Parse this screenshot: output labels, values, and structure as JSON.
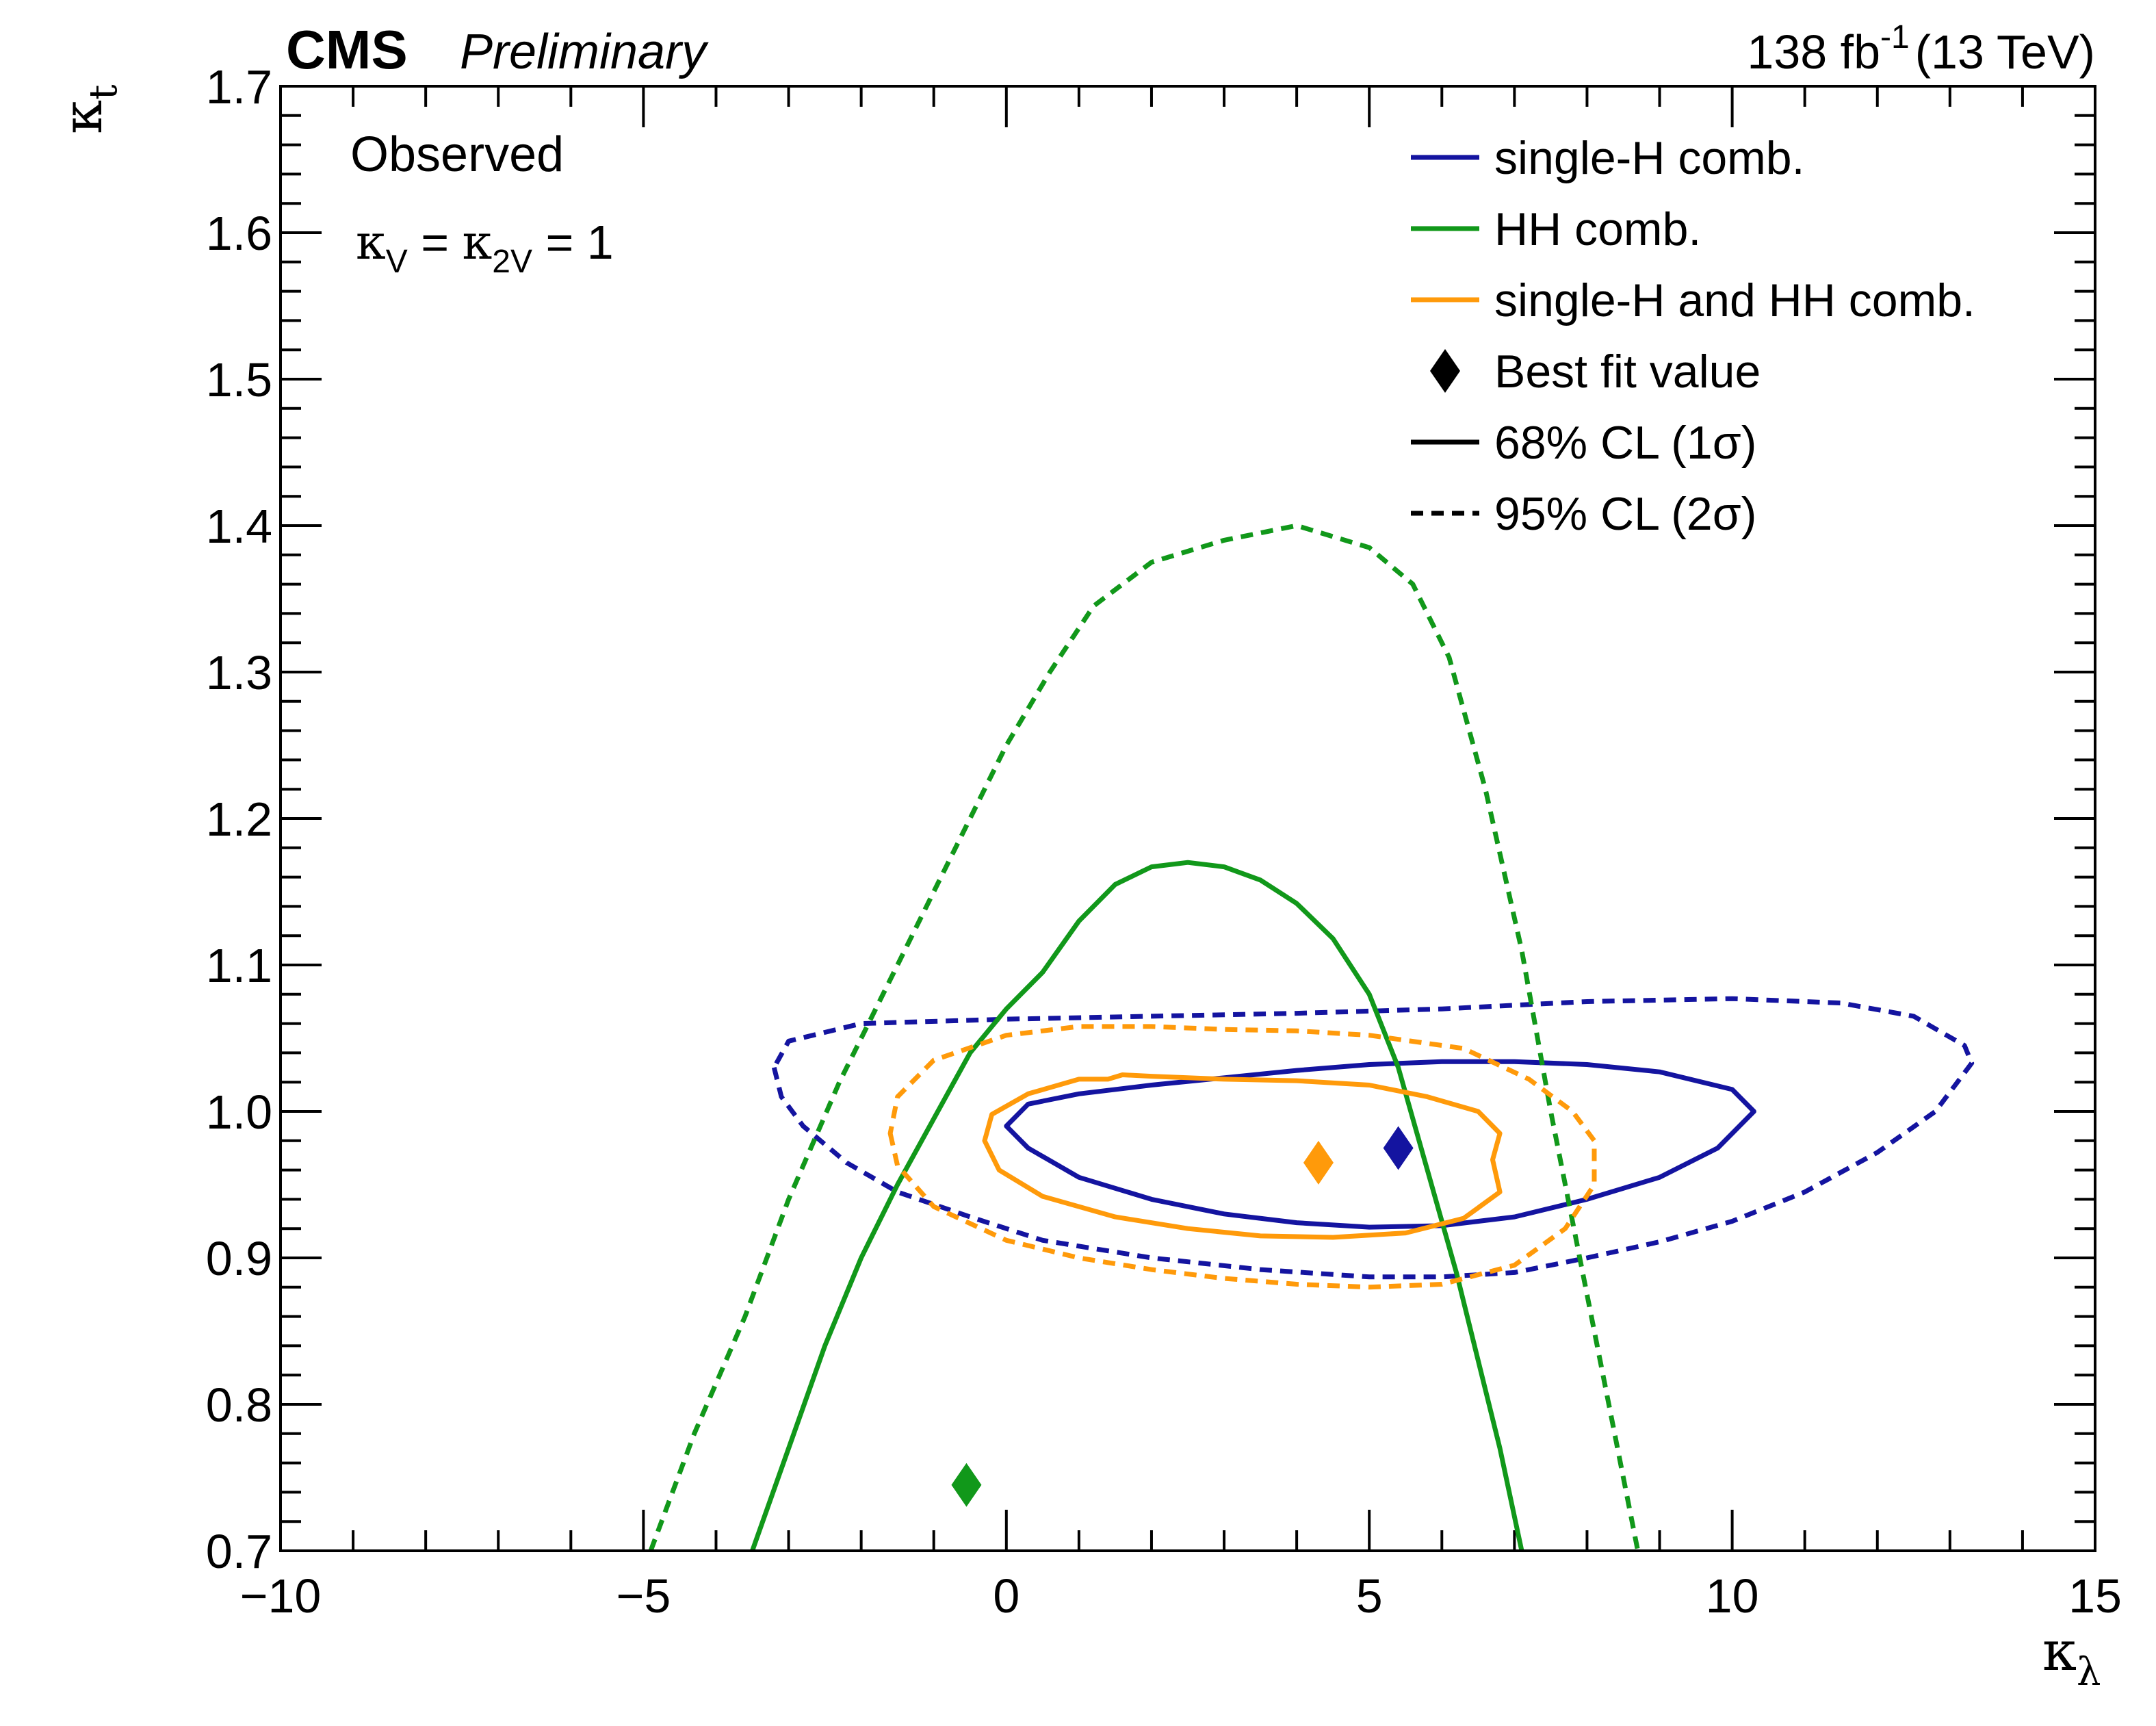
{
  "chart_data": {
    "type": "line",
    "experiment": "CMS",
    "status": "Preliminary",
    "lumi_label": "138 fb",
    "lumi_unit_exp": "-1",
    "energy_label": "(13 TeV)",
    "annotation": "Observed",
    "condition": {
      "k1": "κ",
      "sub1": "V",
      "eq1": " = ",
      "k2": "κ",
      "sub2": "2V",
      "eq2": " = 1"
    },
    "xlabel": {
      "symbol": "κ",
      "sub": "λ"
    },
    "ylabel": {
      "symbol": "κ",
      "sub": "t"
    },
    "xlim": [
      -10,
      15
    ],
    "ylim": [
      0.7,
      1.7
    ],
    "x_ticks": [
      -10,
      -5,
      0,
      5,
      10,
      15
    ],
    "x_tick_labels": [
      "−10",
      "−5",
      "0",
      "5",
      "10",
      "15"
    ],
    "y_ticks": [
      0.7,
      0.8,
      0.9,
      1.0,
      1.1,
      1.2,
      1.3,
      1.4,
      1.5,
      1.6,
      1.7
    ],
    "y_tick_labels": [
      "0.7",
      "0.8",
      "0.9",
      "1.0",
      "1.1",
      "1.2",
      "1.3",
      "1.4",
      "1.5",
      "1.6",
      "1.7"
    ],
    "colors": {
      "single_h": "#1414a0",
      "hh": "#11981a",
      "combined": "#ff9a0a"
    },
    "legend": [
      {
        "label": "single-H comb.",
        "kind": "line",
        "color": "#1414a0",
        "dash": false
      },
      {
        "label": "HH comb.",
        "kind": "line",
        "color": "#11981a",
        "dash": false
      },
      {
        "label": "single-H and HH comb.",
        "kind": "line",
        "color": "#ff9a0a",
        "dash": false
      },
      {
        "label": "Best fit value",
        "kind": "marker",
        "color": "#000000",
        "dash": false
      },
      {
        "label": "68% CL (1σ)",
        "kind": "line",
        "color": "#000000",
        "dash": false
      },
      {
        "label": "95% CL (2σ)",
        "kind": "line",
        "color": "#000000",
        "dash": true
      }
    ],
    "series": [
      {
        "name": "single-H comb. 68% CL",
        "color": "#1414a0",
        "dash": false,
        "closed": true,
        "points": [
          [
            0,
            0.99
          ],
          [
            0.3,
            0.975
          ],
          [
            1,
            0.955
          ],
          [
            2,
            0.94
          ],
          [
            3,
            0.93
          ],
          [
            4,
            0.924
          ],
          [
            5,
            0.921
          ],
          [
            6,
            0.922
          ],
          [
            7,
            0.928
          ],
          [
            8,
            0.94
          ],
          [
            9,
            0.955
          ],
          [
            9.8,
            0.975
          ],
          [
            10.3,
            1.0
          ],
          [
            10,
            1.015
          ],
          [
            9,
            1.027
          ],
          [
            8,
            1.032
          ],
          [
            7,
            1.034
          ],
          [
            6,
            1.034
          ],
          [
            5,
            1.032
          ],
          [
            4,
            1.028
          ],
          [
            3,
            1.023
          ],
          [
            2,
            1.018
          ],
          [
            1,
            1.012
          ],
          [
            0.3,
            1.005
          ],
          [
            0,
            0.99
          ]
        ]
      },
      {
        "name": "single-H comb. 95% CL",
        "color": "#1414a0",
        "dash": true,
        "closed": true,
        "points": [
          [
            -3.2,
            1.03
          ],
          [
            -3.1,
            1.01
          ],
          [
            -2.8,
            0.99
          ],
          [
            -2.2,
            0.965
          ],
          [
            -1.5,
            0.945
          ],
          [
            -0.5,
            0.928
          ],
          [
            0.5,
            0.912
          ],
          [
            2,
            0.9
          ],
          [
            3.5,
            0.892
          ],
          [
            5,
            0.887
          ],
          [
            6,
            0.887
          ],
          [
            7,
            0.89
          ],
          [
            8,
            0.9
          ],
          [
            9,
            0.911
          ],
          [
            10,
            0.925
          ],
          [
            11,
            0.945
          ],
          [
            12,
            0.972
          ],
          [
            12.8,
            1.0
          ],
          [
            13.3,
            1.033
          ],
          [
            13.2,
            1.045
          ],
          [
            12.5,
            1.065
          ],
          [
            11.5,
            1.074
          ],
          [
            10,
            1.077
          ],
          [
            8,
            1.075
          ],
          [
            6,
            1.07
          ],
          [
            4,
            1.067
          ],
          [
            2,
            1.065
          ],
          [
            0,
            1.063
          ],
          [
            -2,
            1.06
          ],
          [
            -3,
            1.048
          ],
          [
            -3.2,
            1.03
          ]
        ]
      },
      {
        "name": "HH comb. 68% CL",
        "color": "#11981a",
        "dash": false,
        "closed": false,
        "points": [
          [
            -3.5,
            0.7
          ],
          [
            -3.0,
            0.77
          ],
          [
            -2.5,
            0.84
          ],
          [
            -2.0,
            0.9
          ],
          [
            -1.5,
            0.95
          ],
          [
            -1.0,
            0.995
          ],
          [
            -0.5,
            1.04
          ],
          [
            0,
            1.07
          ],
          [
            0.5,
            1.095
          ],
          [
            1,
            1.13
          ],
          [
            1.5,
            1.155
          ],
          [
            2,
            1.167
          ],
          [
            2.5,
            1.17
          ],
          [
            3,
            1.167
          ],
          [
            3.5,
            1.158
          ],
          [
            4,
            1.142
          ],
          [
            4.5,
            1.118
          ],
          [
            5,
            1.08
          ],
          [
            5.4,
            1.03
          ],
          [
            5.8,
            0.96
          ],
          [
            6.2,
            0.89
          ],
          [
            6.5,
            0.83
          ],
          [
            6.8,
            0.77
          ],
          [
            7.1,
            0.7
          ]
        ]
      },
      {
        "name": "HH comb. 95% CL",
        "color": "#11981a",
        "dash": true,
        "closed": false,
        "points": [
          [
            -4.9,
            0.7
          ],
          [
            -4.3,
            0.78
          ],
          [
            -3.6,
            0.86
          ],
          [
            -3,
            0.94
          ],
          [
            -2.3,
            1.02
          ],
          [
            -1.5,
            1.1
          ],
          [
            -0.8,
            1.17
          ],
          [
            0,
            1.25
          ],
          [
            0.6,
            1.3
          ],
          [
            1.2,
            1.345
          ],
          [
            2,
            1.375
          ],
          [
            3,
            1.39
          ],
          [
            4,
            1.4
          ],
          [
            5,
            1.385
          ],
          [
            5.6,
            1.36
          ],
          [
            6.1,
            1.31
          ],
          [
            6.6,
            1.22
          ],
          [
            7.1,
            1.11
          ],
          [
            7.5,
            1.0
          ],
          [
            7.9,
            0.9
          ],
          [
            8.3,
            0.8
          ],
          [
            8.7,
            0.7
          ]
        ]
      },
      {
        "name": "single-H and HH comb. 68% CL",
        "color": "#ff9a0a",
        "dash": false,
        "closed": true,
        "points": [
          [
            -0.3,
            0.98
          ],
          [
            -0.1,
            0.96
          ],
          [
            0.5,
            0.942
          ],
          [
            1.5,
            0.928
          ],
          [
            2.5,
            0.92
          ],
          [
            3.5,
            0.915
          ],
          [
            4.5,
            0.914
          ],
          [
            5.5,
            0.917
          ],
          [
            6.3,
            0.927
          ],
          [
            6.8,
            0.945
          ],
          [
            6.7,
            0.967
          ],
          [
            6.8,
            0.985
          ],
          [
            6.5,
            1.0
          ],
          [
            5.8,
            1.01
          ],
          [
            5,
            1.018
          ],
          [
            4,
            1.021
          ],
          [
            3,
            1.022
          ],
          [
            2,
            1.024
          ],
          [
            1.6,
            1.025
          ],
          [
            1.4,
            1.022
          ],
          [
            1,
            1.022
          ],
          [
            0.3,
            1.012
          ],
          [
            -0.2,
            0.998
          ],
          [
            -0.3,
            0.98
          ]
        ]
      },
      {
        "name": "single-H and HH comb. 95% CL",
        "color": "#ff9a0a",
        "dash": true,
        "closed": true,
        "points": [
          [
            -1.6,
            0.985
          ],
          [
            -1.5,
            0.963
          ],
          [
            -1,
            0.935
          ],
          [
            0,
            0.912
          ],
          [
            1,
            0.9
          ],
          [
            2,
            0.892
          ],
          [
            3,
            0.886
          ],
          [
            4,
            0.882
          ],
          [
            5,
            0.88
          ],
          [
            6,
            0.882
          ],
          [
            7,
            0.895
          ],
          [
            7.7,
            0.92
          ],
          [
            8.1,
            0.95
          ],
          [
            8.1,
            0.98
          ],
          [
            7.8,
            1.0
          ],
          [
            7.2,
            1.022
          ],
          [
            6.3,
            1.043
          ],
          [
            5,
            1.052
          ],
          [
            4,
            1.055
          ],
          [
            3,
            1.056
          ],
          [
            2,
            1.058
          ],
          [
            1,
            1.058
          ],
          [
            0,
            1.052
          ],
          [
            -1,
            1.035
          ],
          [
            -1.5,
            1.01
          ],
          [
            -1.6,
            0.985
          ]
        ]
      }
    ],
    "best_fit": [
      {
        "name": "single-H comb. best fit",
        "x": 5.4,
        "y": 0.975,
        "color": "#1414a0"
      },
      {
        "name": "HH comb. best fit",
        "x": -0.55,
        "y": 0.745,
        "color": "#11981a"
      },
      {
        "name": "single-H and HH comb. best fit",
        "x": 4.3,
        "y": 0.965,
        "color": "#ff9a0a"
      }
    ]
  }
}
